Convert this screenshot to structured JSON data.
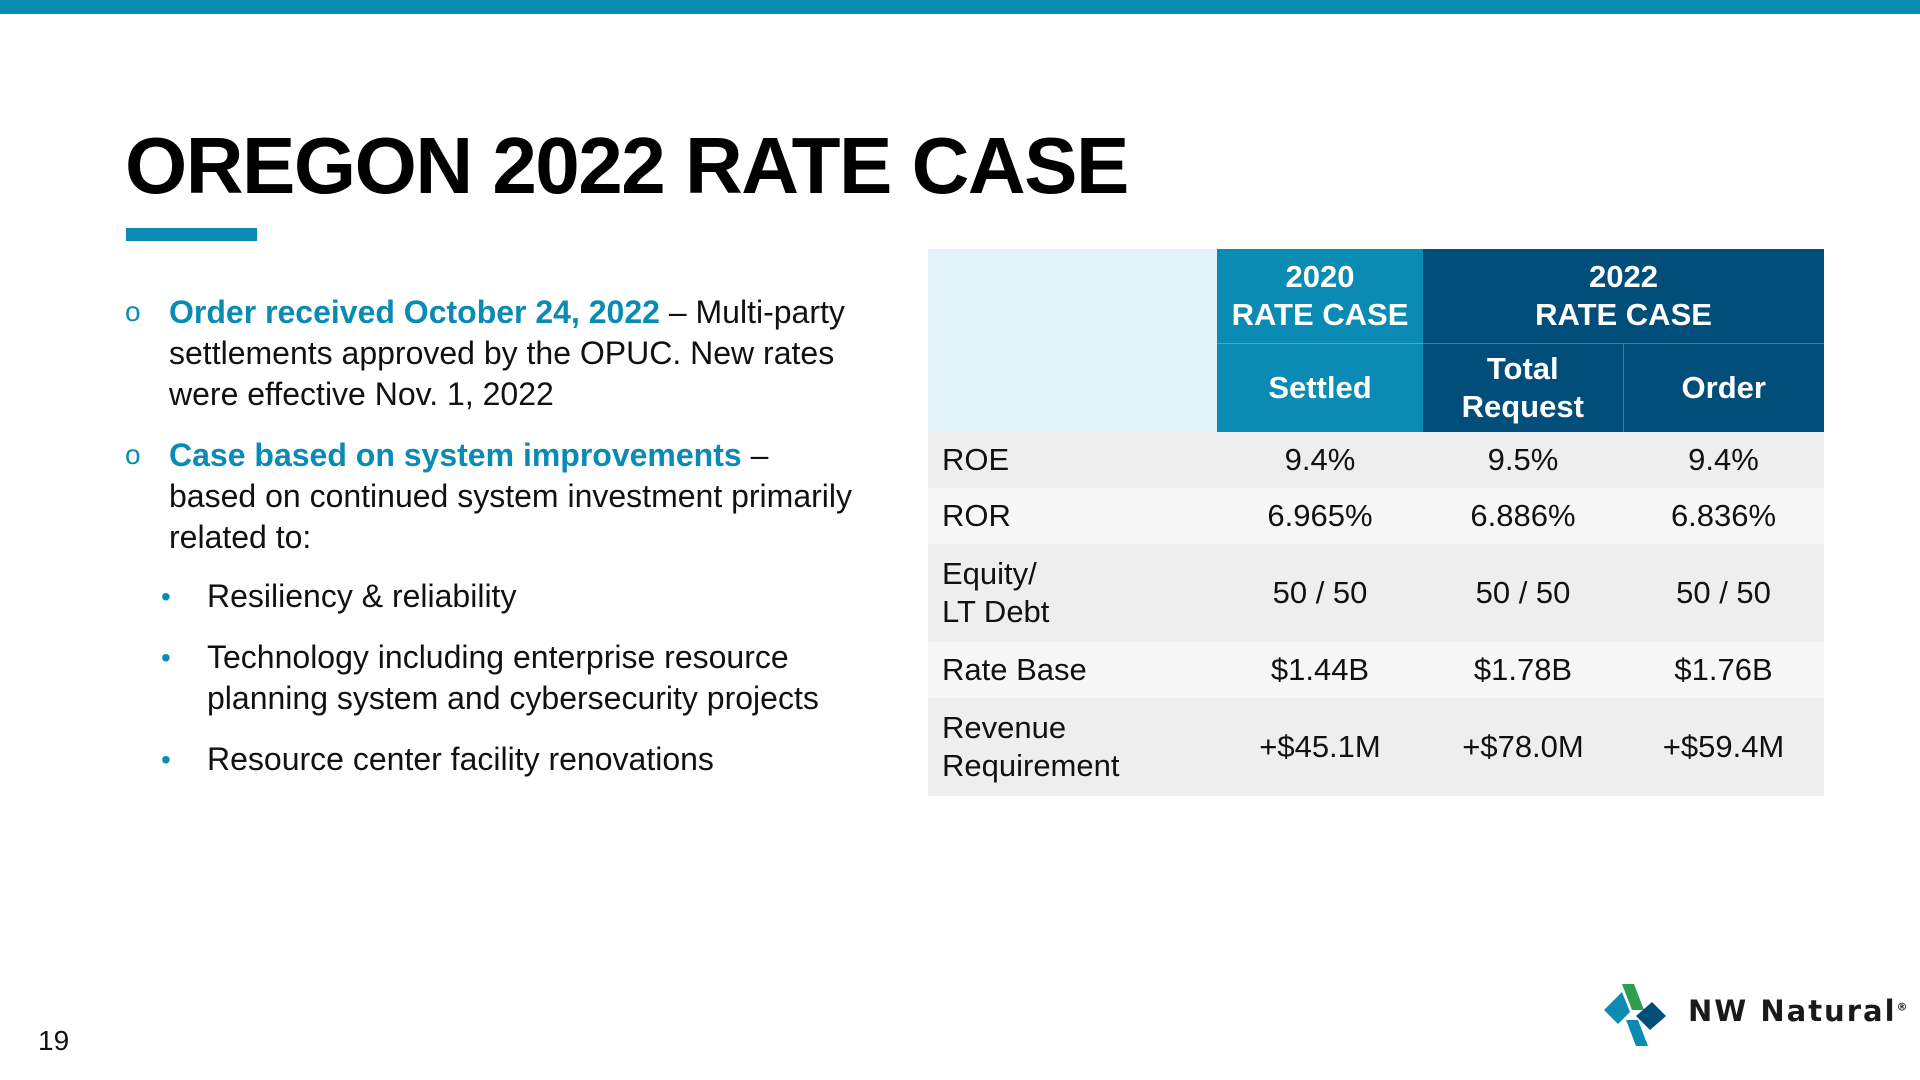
{
  "slide": {
    "title": "OREGON 2022 RATE CASE",
    "page_number": "19",
    "accent_color": "#0a8bb4",
    "dark_color": "#024e7a"
  },
  "bullets": [
    {
      "marker": "o",
      "highlight": "Order received October 24, 2022",
      "text": " – Multi-party settlements approved by the OPUC. New rates were effective Nov. 1, 2022"
    },
    {
      "marker": "o",
      "highlight": "Case based on system improvements",
      "text": " – based on continued system investment primarily related to:",
      "sub_items": [
        "Resiliency & reliability",
        "Technology including enterprise resource planning system and cybersecurity projects",
        "Resource center facility renovations"
      ]
    }
  ],
  "table": {
    "group_headers": [
      {
        "line1": "2020",
        "line2": "RATE CASE"
      },
      {
        "line1": "2022",
        "line2": "RATE CASE"
      }
    ],
    "sub_headers": {
      "settled": "Settled",
      "total_request_line1": "Total",
      "total_request_line2": "Request",
      "order": "Order"
    },
    "rows": [
      {
        "label": "ROE",
        "settled": "9.4%",
        "total_request": "9.5%",
        "order": "9.4%"
      },
      {
        "label": "ROR",
        "settled": "6.965%",
        "total_request": "6.886%",
        "order": "6.836%"
      },
      {
        "label_line1": "Equity/",
        "label_line2": "LT Debt",
        "settled": "50 / 50",
        "total_request": "50 / 50",
        "order": "50 / 50"
      },
      {
        "label": "Rate Base",
        "settled": "$1.44B",
        "total_request": "$1.78B",
        "order": "$1.76B"
      },
      {
        "label_line1": "Revenue",
        "label_line2": "Requirement",
        "settled": "+$45.1M",
        "total_request": "+$78.0M",
        "order": "+$59.4M"
      }
    ]
  },
  "logo": {
    "text": "NW Natural",
    "registered": "®",
    "icon": "nw-natural-logo-icon",
    "colors": [
      "#0a8bb4",
      "#024e7a",
      "#2e9e4e"
    ]
  }
}
